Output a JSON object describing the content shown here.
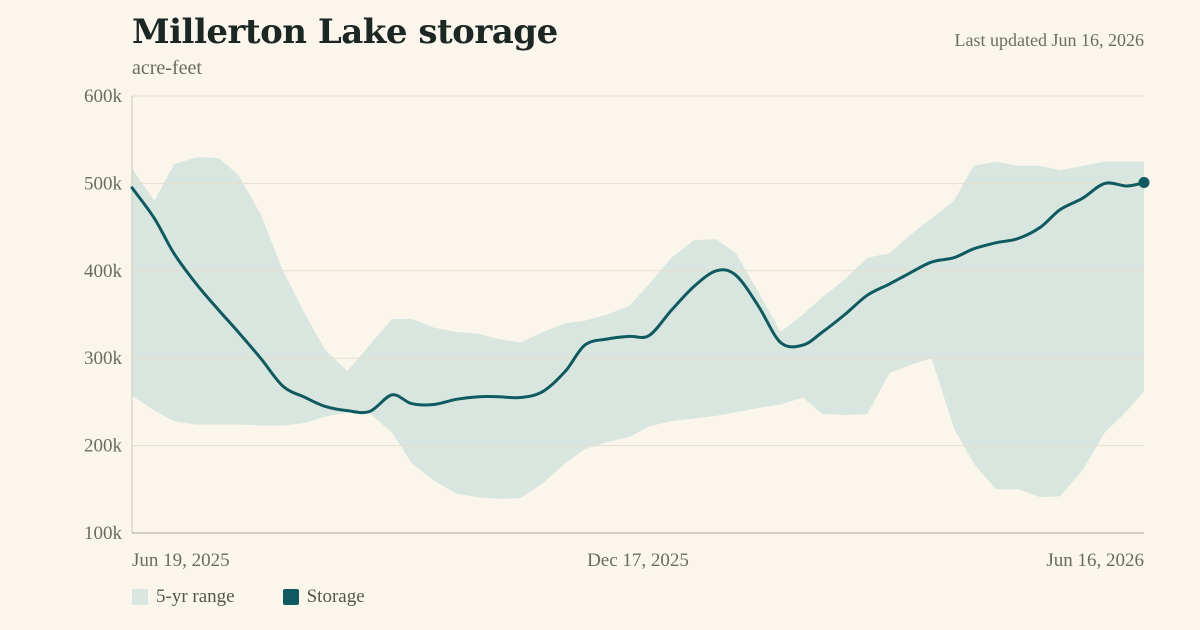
{
  "header": {
    "title": "Millerton Lake storage",
    "subtitle": "acre-feet",
    "updated": "Last updated Jun 16, 2026"
  },
  "colors": {
    "background": "#faf6ec",
    "band": "#d9e6df",
    "line": "#0e5a60",
    "grid": "#e6dfcc",
    "axis_text": "#6b6b62"
  },
  "legend": {
    "range_label": "5-yr range",
    "storage_label": "Storage"
  },
  "chart_data": {
    "type": "area",
    "title": "Millerton Lake storage",
    "ylabel": "acre-feet",
    "xlabel": "",
    "ylim": [
      100000,
      600000
    ],
    "xlim": [
      "2025-06-19",
      "2026-06-16"
    ],
    "y_ticks": [
      100000,
      200000,
      300000,
      400000,
      500000,
      600000
    ],
    "y_tick_labels": [
      "100k",
      "200k",
      "300k",
      "400k",
      "500k",
      "600k"
    ],
    "x_ticks": [
      "2025-06-19",
      "2025-12-17",
      "2026-06-16"
    ],
    "x_tick_labels": [
      "Jun 19, 2025",
      "Dec 17, 2025",
      "Jun 16, 2026"
    ],
    "grid": true,
    "legend_position": "bottom-left",
    "series": [
      {
        "name": "Storage",
        "type": "line",
        "x": [
          "2025-06-19",
          "2025-06-27",
          "2025-07-04",
          "2025-07-12",
          "2025-07-20",
          "2025-07-27",
          "2025-08-04",
          "2025-08-12",
          "2025-08-20",
          "2025-08-27",
          "2025-09-04",
          "2025-09-12",
          "2025-09-20",
          "2025-09-27",
          "2025-10-05",
          "2025-10-13",
          "2025-10-21",
          "2025-10-28",
          "2025-11-05",
          "2025-11-13",
          "2025-11-21",
          "2025-11-28",
          "2025-12-06",
          "2025-12-14",
          "2025-12-21",
          "2025-12-29",
          "2026-01-06",
          "2026-01-14",
          "2026-01-21",
          "2026-01-29",
          "2026-02-06",
          "2026-02-14",
          "2026-02-21",
          "2026-03-01",
          "2026-03-09",
          "2026-03-17",
          "2026-03-24",
          "2026-04-01",
          "2026-04-09",
          "2026-04-16",
          "2026-04-24",
          "2026-05-02",
          "2026-05-10",
          "2026-05-17",
          "2026-05-25",
          "2026-06-02",
          "2026-06-10",
          "2026-06-16"
        ],
        "values": [
          495000,
          460000,
          420000,
          385000,
          355000,
          330000,
          300000,
          268000,
          255000,
          245000,
          240000,
          239000,
          258000,
          248000,
          247000,
          253000,
          256000,
          256000,
          255000,
          262000,
          285000,
          315000,
          322000,
          325000,
          326000,
          355000,
          382000,
          400000,
          395000,
          360000,
          318000,
          315000,
          330000,
          350000,
          372000,
          385000,
          397000,
          410000,
          415000,
          425000,
          432000,
          437000,
          450000,
          470000,
          483000,
          500000,
          497000,
          501000
        ]
      },
      {
        "name": "5-yr range",
        "type": "band",
        "x": [
          "2025-06-19",
          "2025-06-27",
          "2025-07-04",
          "2025-07-12",
          "2025-07-20",
          "2025-07-27",
          "2025-08-04",
          "2025-08-12",
          "2025-08-20",
          "2025-08-27",
          "2025-09-04",
          "2025-09-12",
          "2025-09-20",
          "2025-09-27",
          "2025-10-05",
          "2025-10-13",
          "2025-10-21",
          "2025-10-28",
          "2025-11-05",
          "2025-11-13",
          "2025-11-21",
          "2025-11-28",
          "2025-12-06",
          "2025-12-14",
          "2025-12-21",
          "2025-12-29",
          "2026-01-06",
          "2026-01-14",
          "2026-01-21",
          "2026-01-29",
          "2026-02-06",
          "2026-02-14",
          "2026-02-21",
          "2026-03-01",
          "2026-03-09",
          "2026-03-17",
          "2026-03-24",
          "2026-04-01",
          "2026-04-09",
          "2026-04-16",
          "2026-04-24",
          "2026-05-02",
          "2026-05-10",
          "2026-05-17",
          "2026-05-25",
          "2026-06-02",
          "2026-06-10",
          "2026-06-16"
        ],
        "low": [
          257000,
          240000,
          228000,
          224000,
          224000,
          224000,
          223000,
          223000,
          226000,
          233000,
          238000,
          237000,
          215000,
          180000,
          160000,
          145000,
          141000,
          139000,
          140000,
          157000,
          180000,
          196000,
          204000,
          210000,
          222000,
          228000,
          231000,
          234000,
          238000,
          243000,
          247000,
          255000,
          236000,
          235000,
          236000,
          283000,
          292000,
          300000,
          220000,
          180000,
          150000,
          150000,
          141000,
          142000,
          172000,
          215000,
          240000,
          262000
        ],
        "high": [
          517000,
          480000,
          522000,
          530000,
          529000,
          510000,
          465000,
          400000,
          350000,
          310000,
          285000,
          315000,
          345000,
          345000,
          335000,
          330000,
          328000,
          322000,
          318000,
          330000,
          340000,
          343000,
          350000,
          360000,
          385000,
          415000,
          435000,
          436000,
          420000,
          376000,
          330000,
          350000,
          370000,
          390000,
          415000,
          420000,
          440000,
          460000,
          480000,
          520000,
          525000,
          520000,
          520000,
          515000,
          520000,
          525000,
          525000,
          525000
        ]
      }
    ]
  }
}
